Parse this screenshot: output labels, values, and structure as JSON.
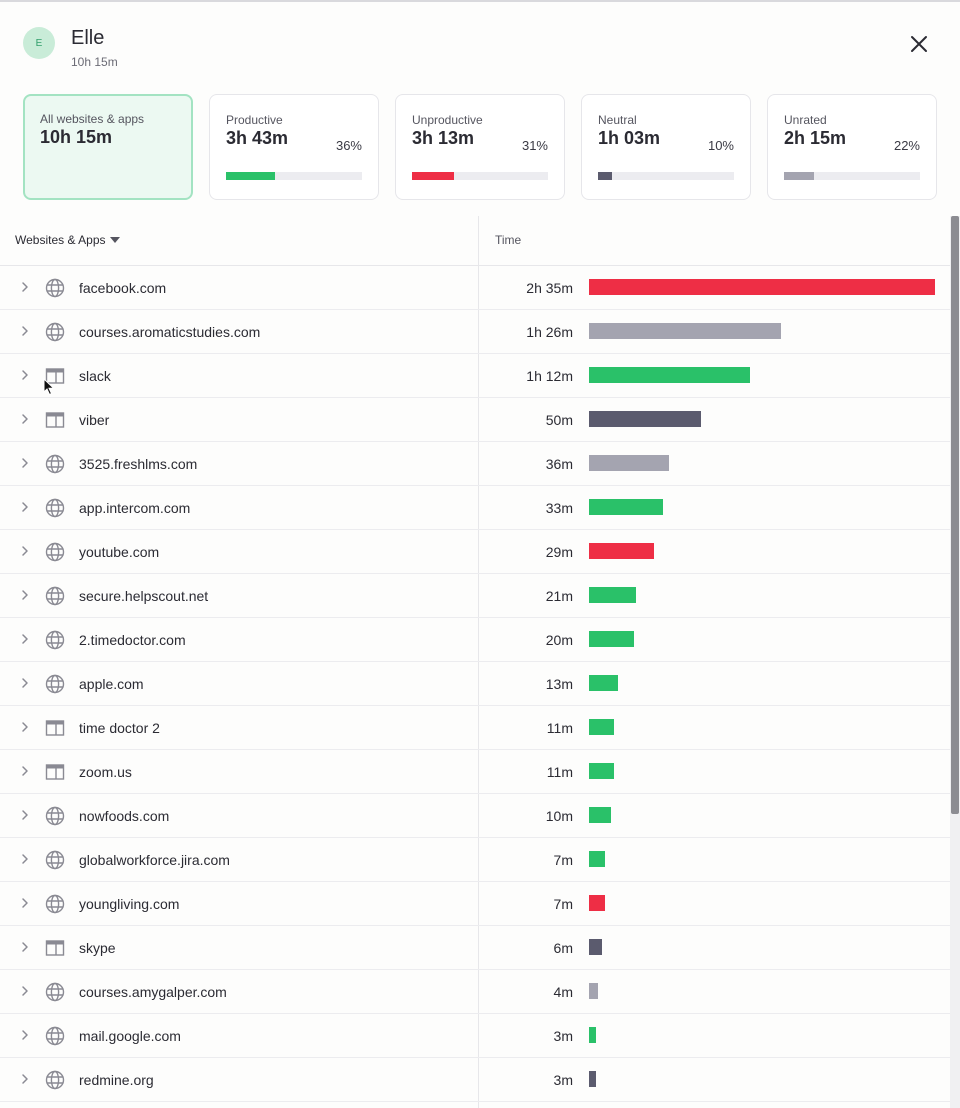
{
  "user": {
    "initial": "E",
    "name": "Elle",
    "total": "10h 15m"
  },
  "cards": [
    {
      "label": "All websites & apps",
      "value": "10h 15m",
      "percent": "",
      "fraction": null,
      "color": "",
      "active": true
    },
    {
      "label": "Productive",
      "value": "3h 43m",
      "percent": "36%",
      "fraction": 0.36,
      "color": "#2ac169",
      "active": false
    },
    {
      "label": "Unproductive",
      "value": "3h 13m",
      "percent": "31%",
      "fraction": 0.31,
      "color": "#ee2e45",
      "active": false
    },
    {
      "label": "Neutral",
      "value": "1h 03m",
      "percent": "10%",
      "fraction": 0.1,
      "color": "#5b5b6e",
      "active": false
    },
    {
      "label": "Unrated",
      "value": "2h 15m",
      "percent": "22%",
      "fraction": 0.22,
      "color": "#a4a4b0",
      "active": false
    }
  ],
  "table": {
    "name_header": "Websites & Apps",
    "time_header": "Time",
    "rows": [
      {
        "name": "facebook.com",
        "time": "2h 35m",
        "minutes": 155,
        "type": "website",
        "category": "unproductive"
      },
      {
        "name": "courses.aromaticstudies.com",
        "time": "1h 26m",
        "minutes": 86,
        "type": "website",
        "category": "unrated"
      },
      {
        "name": "slack",
        "time": "1h 12m",
        "minutes": 72,
        "type": "app",
        "category": "productive"
      },
      {
        "name": "viber",
        "time": "50m",
        "minutes": 50,
        "type": "app",
        "category": "neutral"
      },
      {
        "name": "3525.freshlms.com",
        "time": "36m",
        "minutes": 36,
        "type": "website",
        "category": "unrated"
      },
      {
        "name": "app.intercom.com",
        "time": "33m",
        "minutes": 33,
        "type": "website",
        "category": "productive"
      },
      {
        "name": "youtube.com",
        "time": "29m",
        "minutes": 29,
        "type": "website",
        "category": "unproductive"
      },
      {
        "name": "secure.helpscout.net",
        "time": "21m",
        "minutes": 21,
        "type": "website",
        "category": "productive"
      },
      {
        "name": "2.timedoctor.com",
        "time": "20m",
        "minutes": 20,
        "type": "website",
        "category": "productive"
      },
      {
        "name": "apple.com",
        "time": "13m",
        "minutes": 13,
        "type": "website",
        "category": "productive"
      },
      {
        "name": "time doctor 2",
        "time": "11m",
        "minutes": 11,
        "type": "app",
        "category": "productive"
      },
      {
        "name": "zoom.us",
        "time": "11m",
        "minutes": 11,
        "type": "app",
        "category": "productive"
      },
      {
        "name": "nowfoods.com",
        "time": "10m",
        "minutes": 10,
        "type": "website",
        "category": "productive"
      },
      {
        "name": "globalworkforce.jira.com",
        "time": "7m",
        "minutes": 7,
        "type": "website",
        "category": "productive"
      },
      {
        "name": "youngliving.com",
        "time": "7m",
        "minutes": 7,
        "type": "website",
        "category": "unproductive"
      },
      {
        "name": "skype",
        "time": "6m",
        "minutes": 6,
        "type": "app",
        "category": "neutral"
      },
      {
        "name": "courses.amygalper.com",
        "time": "4m",
        "minutes": 4,
        "type": "website",
        "category": "unrated"
      },
      {
        "name": "mail.google.com",
        "time": "3m",
        "minutes": 3,
        "type": "website",
        "category": "productive"
      },
      {
        "name": "redmine.org",
        "time": "3m",
        "minutes": 3,
        "type": "website",
        "category": "neutral"
      }
    ]
  },
  "colors": {
    "productive": "#2ac169",
    "unproductive": "#ee2e45",
    "neutral": "#5b5b6e",
    "unrated": "#a4a4b0",
    "accent": "#a3e3c2"
  },
  "icons": {
    "close": "close-icon",
    "sort": "caret-down-icon",
    "expand": "chevron-right-icon",
    "website": "globe-icon",
    "app": "app-window-icon"
  }
}
